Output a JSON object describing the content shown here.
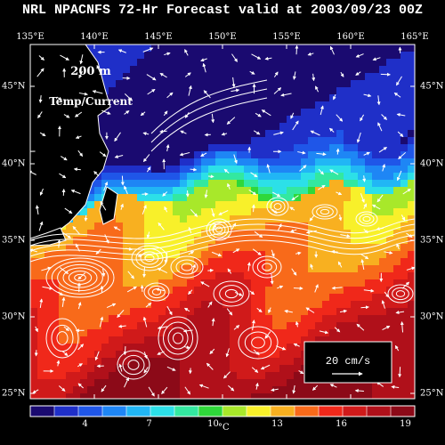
{
  "title": "NRL NPACNFS 72-Hr Forecast valid at 2003/09/23 00Z",
  "overlay_text": {
    "depth": "200 m",
    "field": "Temp/Current"
  },
  "legend": {
    "speed_label": "20 cm/s",
    "unit": "°C",
    "ticks": [
      "4",
      "7",
      "10",
      "13",
      "16",
      "19"
    ]
  },
  "axes": {
    "lon_labels": [
      "135°E",
      "140°E",
      "145°E",
      "150°E",
      "155°E",
      "160°E",
      "165°E"
    ],
    "lat_labels": [
      "45°N",
      "40°N",
      "35°N",
      "30°N",
      "25°N"
    ]
  },
  "colors": {
    "background": "#000000",
    "land": "#000000",
    "coast": "#ffffff",
    "vector": "#ffffff",
    "colormap": [
      "#1a0a70",
      "#1f2fc8",
      "#1f56e8",
      "#1e86f5",
      "#21b6f5",
      "#2ce0e8",
      "#33e8a0",
      "#2fd83a",
      "#a8e82a",
      "#f8f02a",
      "#f8b020",
      "#f86a1a",
      "#f0281a",
      "#d01a1a",
      "#b0101a",
      "#8c0a18"
    ]
  }
}
